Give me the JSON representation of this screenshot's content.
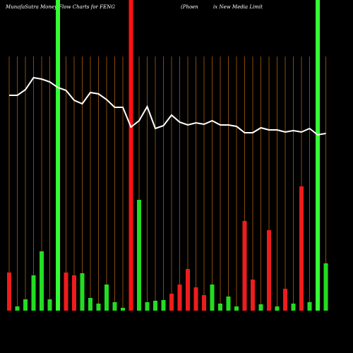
{
  "chart_data": {
    "type": "bar",
    "title": "MunafaSutra  Money Flow  Charts for FENG",
    "subtitle_left": "(Phoen",
    "subtitle_right": "ix New Media  Limit",
    "ylim": [
      0,
      440
    ],
    "bar_values": [
      54,
      6,
      16,
      50,
      84,
      16,
      440,
      54,
      50,
      53,
      18,
      10,
      37,
      12,
      4,
      440,
      157,
      12,
      14,
      15,
      24,
      37,
      59,
      33,
      22,
      37,
      10,
      20,
      6,
      127,
      44,
      9,
      114,
      6,
      31,
      10,
      176,
      12,
      440,
      67
    ],
    "bar_colors": [
      "#ee1c1c",
      "#22dd22",
      "#22dd22",
      "#22dd22",
      "#22dd22",
      "#22dd22",
      "#33ff33",
      "#ee1c1c",
      "#ee1c1c",
      "#22dd22",
      "#22dd22",
      "#22dd22",
      "#22dd22",
      "#22dd22",
      "#22dd22",
      "#ff1111",
      "#22dd22",
      "#22dd22",
      "#22dd22",
      "#22dd22",
      "#ee1c1c",
      "#ee1c1c",
      "#ee1c1c",
      "#ee1c1c",
      "#ee1c1c",
      "#22dd22",
      "#22dd22",
      "#22dd22",
      "#22dd22",
      "#ee1c1c",
      "#ee1c1c",
      "#22dd22",
      "#ee1c1c",
      "#22dd22",
      "#ee1c1c",
      "#22dd22",
      "#ee1c1c",
      "#22dd22",
      "#33ff33",
      "#22dd22"
    ],
    "line_values": [
      305,
      305,
      313,
      330,
      328,
      324,
      316,
      312,
      298,
      293,
      309,
      307,
      299,
      288,
      288,
      260,
      269,
      289,
      258,
      262,
      277,
      267,
      263,
      266,
      264,
      269,
      263,
      263,
      261,
      252,
      252,
      259,
      256,
      256,
      253,
      255,
      253,
      258,
      249,
      251
    ],
    "line_color": "#ffffff",
    "grid_color": "#8a4a0a"
  }
}
